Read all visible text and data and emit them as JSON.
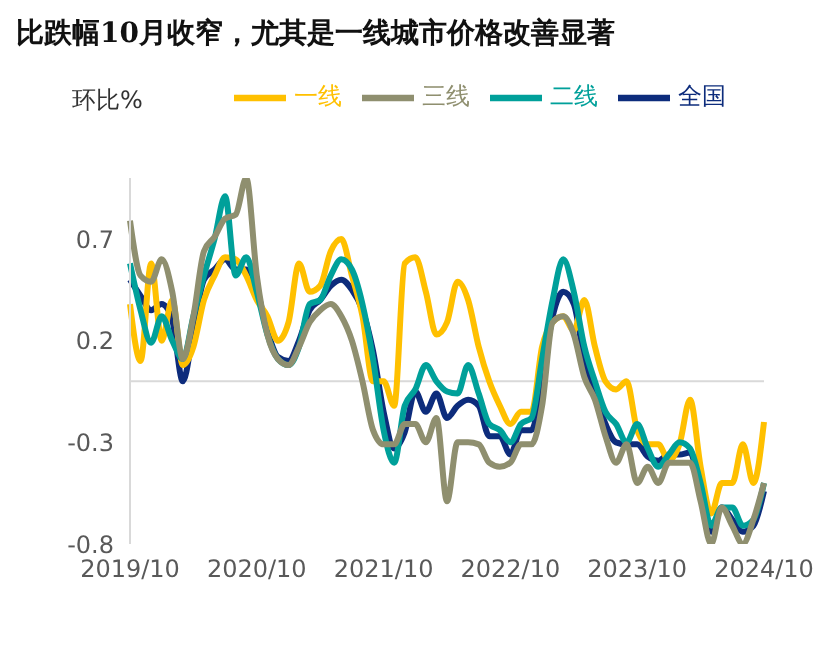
{
  "chart_data": {
    "type": "line",
    "title": "比跌幅10月收窄，尤其是一线城市价格改善显著",
    "ylabel": "环比%",
    "categories": [
      "2019/10",
      null,
      null,
      null,
      null,
      null,
      null,
      null,
      null,
      null,
      null,
      null,
      "2020/10",
      null,
      null,
      null,
      null,
      null,
      null,
      null,
      null,
      null,
      null,
      null,
      "2021/10",
      null,
      null,
      null,
      null,
      null,
      null,
      null,
      null,
      null,
      null,
      null,
      "2022/10",
      null,
      null,
      null,
      null,
      null,
      null,
      null,
      null,
      null,
      null,
      null,
      "2023/10",
      null,
      null,
      null,
      null,
      null,
      null,
      null,
      null,
      null,
      null,
      null,
      "2024/10"
    ],
    "series": [
      {
        "name": "全国",
        "color": "#0d2c7c",
        "values": [
          0.5,
          0.42,
          0.35,
          0.38,
          0.3,
          0.0,
          0.25,
          0.5,
          0.55,
          0.6,
          0.55,
          0.55,
          0.45,
          0.25,
          0.12,
          0.1,
          0.2,
          0.35,
          0.4,
          0.47,
          0.5,
          0.45,
          0.35,
          0.15,
          -0.15,
          -0.33,
          -0.25,
          -0.05,
          -0.15,
          -0.06,
          -0.18,
          -0.12,
          -0.09,
          -0.12,
          -0.27,
          -0.27,
          -0.36,
          -0.24,
          -0.24,
          0.0,
          0.32,
          0.44,
          0.38,
          0.11,
          -0.06,
          -0.21,
          -0.3,
          -0.31,
          -0.31,
          -0.37,
          -0.39,
          -0.36,
          -0.36,
          -0.35,
          -0.54,
          -0.74,
          -0.62,
          -0.68,
          -0.74,
          -0.71,
          -0.54
        ]
      },
      {
        "name": "一线",
        "color": "#ffc000",
        "values": [
          0.38,
          0.1,
          0.58,
          0.2,
          0.4,
          0.08,
          0.17,
          0.4,
          0.52,
          0.61,
          0.6,
          0.52,
          0.4,
          0.32,
          0.2,
          0.29,
          0.58,
          0.44,
          0.47,
          0.64,
          0.7,
          0.52,
          0.32,
          0.0,
          0.0,
          -0.12,
          0.58,
          0.61,
          0.44,
          0.23,
          0.29,
          0.49,
          0.4,
          0.17,
          0.0,
          -0.12,
          -0.21,
          -0.15,
          -0.15,
          0.17,
          0.29,
          0.32,
          0.25,
          0.4,
          0.17,
          0.0,
          -0.04,
          0.0,
          -0.24,
          -0.31,
          -0.31,
          -0.39,
          -0.31,
          -0.09,
          -0.42,
          -0.65,
          -0.5,
          -0.5,
          -0.31,
          -0.5,
          -0.2
        ]
      },
      {
        "name": "二线",
        "color": "#00a09a",
        "values": [
          0.58,
          0.35,
          0.19,
          0.32,
          0.2,
          0.11,
          0.32,
          0.52,
          0.7,
          0.91,
          0.52,
          0.61,
          0.44,
          0.23,
          0.11,
          0.08,
          0.17,
          0.38,
          0.4,
          0.52,
          0.6,
          0.55,
          0.38,
          0.11,
          -0.24,
          -0.4,
          -0.12,
          -0.04,
          0.08,
          0.0,
          -0.05,
          -0.06,
          0.08,
          -0.06,
          -0.21,
          -0.24,
          -0.3,
          -0.21,
          -0.18,
          0.11,
          0.4,
          0.6,
          0.44,
          0.17,
          0.0,
          -0.15,
          -0.21,
          -0.3,
          -0.21,
          -0.33,
          -0.42,
          -0.36,
          -0.3,
          -0.33,
          -0.5,
          -0.71,
          -0.62,
          -0.62,
          -0.71,
          -0.68,
          -0.5
        ]
      },
      {
        "name": "三线",
        "color": "#8f8f6f",
        "values": [
          0.79,
          0.52,
          0.49,
          0.6,
          0.44,
          0.11,
          0.32,
          0.64,
          0.71,
          0.8,
          0.82,
          1.0,
          0.52,
          0.23,
          0.11,
          0.08,
          0.17,
          0.29,
          0.35,
          0.38,
          0.32,
          0.2,
          0.0,
          -0.24,
          -0.31,
          -0.31,
          -0.21,
          -0.21,
          -0.3,
          -0.18,
          -0.59,
          -0.3,
          -0.3,
          -0.31,
          -0.4,
          -0.42,
          -0.4,
          -0.31,
          -0.31,
          -0.12,
          0.29,
          0.32,
          0.23,
          0.02,
          -0.09,
          -0.27,
          -0.4,
          -0.31,
          -0.5,
          -0.42,
          -0.5,
          -0.4,
          -0.4,
          -0.4,
          -0.59,
          -0.8,
          -0.62,
          -0.71,
          -0.8,
          -0.68,
          -0.5
        ]
      }
    ],
    "ylim": [
      -0.8,
      1.0
    ],
    "yticks": [
      -0.8,
      -0.3,
      0.2,
      0.7
    ],
    "grid": false,
    "legend": "top",
    "ref_lines": [
      {
        "axis": "y",
        "value": 0,
        "color": "#d9d9d9"
      }
    ]
  }
}
